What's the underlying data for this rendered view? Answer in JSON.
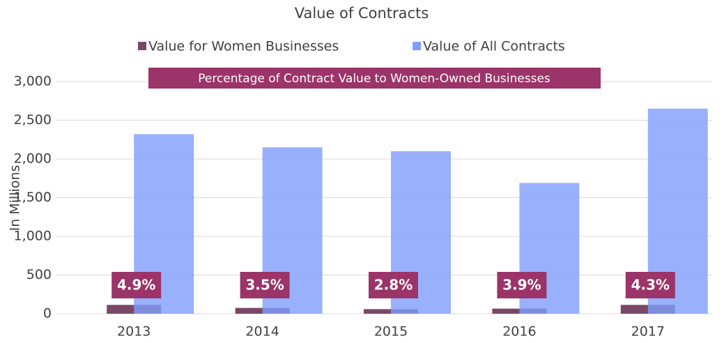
{
  "chart_data": {
    "type": "bar",
    "title": "Value of Contracts",
    "y_label": "In Millions",
    "annotation": "Percentage of Contract Value to Women-Owned Businesses",
    "categories": [
      "2013",
      "2014",
      "2015",
      "2016",
      "2017"
    ],
    "series": [
      {
        "name": "Value for Women Businesses",
        "color": "#7a4867",
        "values": [
          114,
          75,
          59,
          66,
          114
        ]
      },
      {
        "name": "Value of All Contracts",
        "color": "#7f9dfc",
        "values": [
          2320,
          2150,
          2100,
          1690,
          2650
        ]
      }
    ],
    "percent_labels": [
      "4.9%",
      "3.5%",
      "2.8%",
      "3.9%",
      "4.3%"
    ],
    "ylim": [
      0,
      3000
    ],
    "yticks": [
      0,
      500,
      {
        "value": 1000,
        "label": "1,000"
      },
      {
        "value": 1500,
        "label": "1,500"
      },
      {
        "value": 2000,
        "label": "2,000"
      },
      {
        "value": 2500,
        "label": "2,500"
      },
      {
        "value": 3000,
        "label": "3,000"
      }
    ],
    "grid": true
  }
}
